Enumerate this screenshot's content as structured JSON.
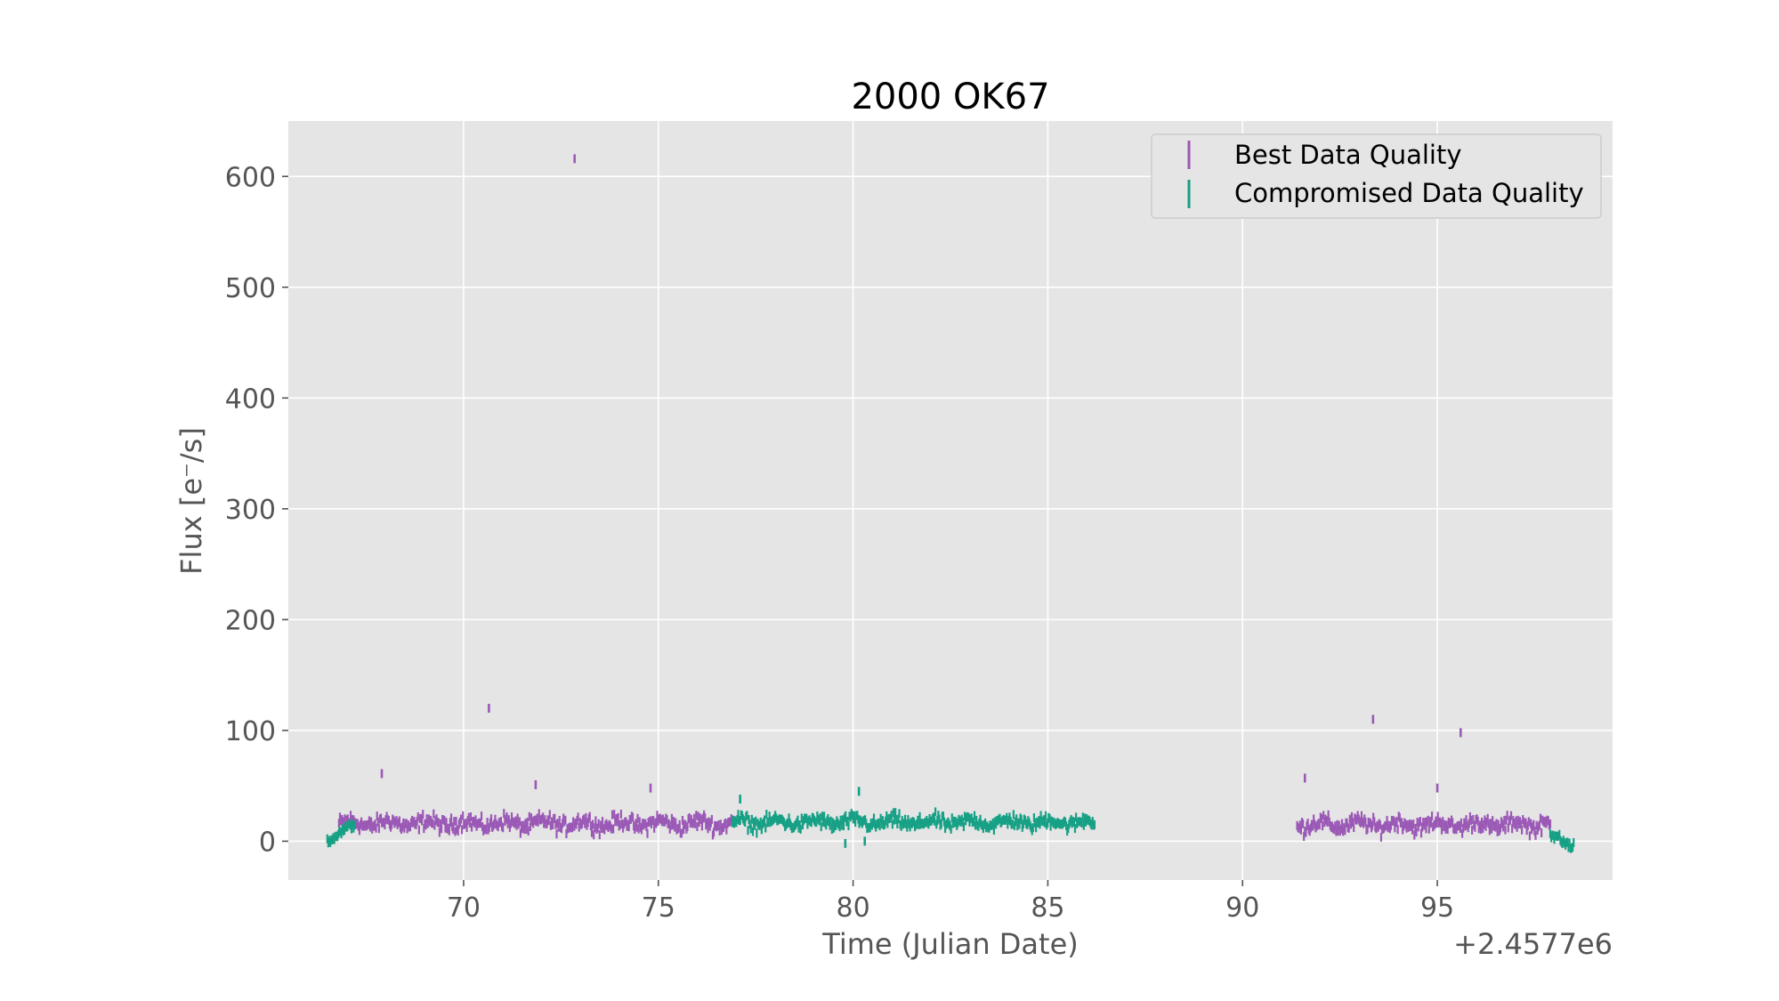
{
  "chart_data": {
    "type": "scatter",
    "title": "2000 OK67",
    "xlabel": "Time (Julian Date)",
    "ylabel": "Flux [e⁻/s]",
    "x_offset_label": "+2.4577e6",
    "xlim": [
      65.5,
      99.5
    ],
    "ylim": [
      -35,
      650
    ],
    "x_ticks": [
      70,
      75,
      80,
      85,
      90,
      95
    ],
    "x_tick_labels": [
      "70",
      "75",
      "80",
      "85",
      "90",
      "95"
    ],
    "y_ticks": [
      0,
      100,
      200,
      300,
      400,
      500,
      600
    ],
    "y_tick_labels": [
      "0",
      "100",
      "200",
      "300",
      "400",
      "500",
      "600"
    ],
    "grid": true,
    "legend_position": "top-right",
    "series": [
      {
        "name": "Best Data Quality",
        "color": "#9b59b6",
        "segments": [
          {
            "x_start": 66.8,
            "x_end": 76.9,
            "y_level": 16,
            "y_scatter": 8
          },
          {
            "x_start": 91.4,
            "x_end": 97.9,
            "y_level": 15,
            "y_scatter": 8
          }
        ],
        "outliers": [
          {
            "x": 67.9,
            "y": 61
          },
          {
            "x": 70.65,
            "y": 120
          },
          {
            "x": 71.85,
            "y": 51
          },
          {
            "x": 72.85,
            "y": 616
          },
          {
            "x": 74.8,
            "y": 48
          },
          {
            "x": 91.6,
            "y": 57
          },
          {
            "x": 93.35,
            "y": 110
          },
          {
            "x": 95.0,
            "y": 48
          },
          {
            "x": 95.6,
            "y": 98
          }
        ]
      },
      {
        "name": "Compromised Data Quality",
        "color": "#16a085",
        "segments": [
          {
            "x_start": 66.5,
            "x_end": 67.2,
            "y_level": 2,
            "y_scatter": 4
          },
          {
            "x_start": 76.9,
            "x_end": 86.2,
            "y_level": 17,
            "y_scatter": 7
          },
          {
            "x_start": 97.9,
            "x_end": 98.5,
            "y_level": 4,
            "y_scatter": 5
          }
        ],
        "outliers": [
          {
            "x": 77.1,
            "y": 38
          },
          {
            "x": 80.15,
            "y": 45
          },
          {
            "x": 79.8,
            "y": -2
          },
          {
            "x": 80.3,
            "y": 0
          }
        ]
      }
    ]
  }
}
